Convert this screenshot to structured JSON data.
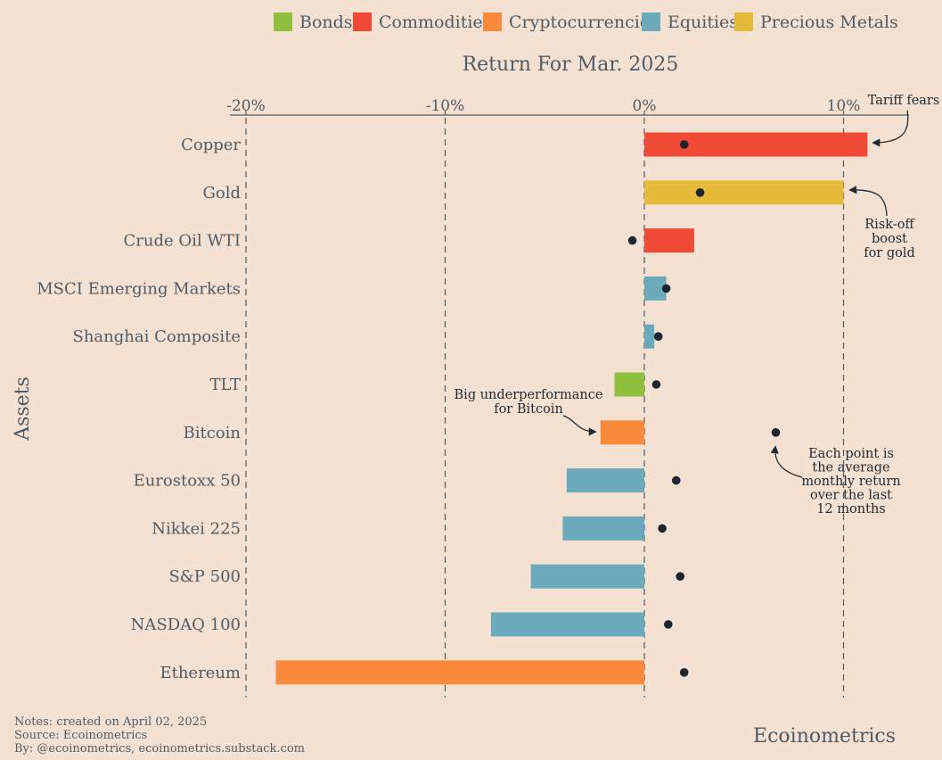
{
  "chart_data": {
    "type": "bar",
    "orientation": "horizontal",
    "title": "Return For Mar. 2025",
    "ylabel": "Assets",
    "xlim": [
      -20,
      12
    ],
    "xticks": [
      -20,
      -10,
      0,
      10
    ],
    "xtick_labels": [
      "-20%",
      "-10%",
      "0%",
      "10%"
    ],
    "grid": "vertical dashed at ticks",
    "legend_position": "top",
    "legend": [
      {
        "name": "Bonds",
        "color": "#8fc13e"
      },
      {
        "name": "Commodities",
        "color": "#f04a35"
      },
      {
        "name": "Cryptocurrencies",
        "color": "#fb8a3c"
      },
      {
        "name": "Equities",
        "color": "#6aaabb"
      },
      {
        "name": "Precious Metals",
        "color": "#e6bb3a"
      }
    ],
    "categories": [
      "Copper",
      "Gold",
      "Crude Oil WTI",
      "MSCI Emerging Markets",
      "Shanghai Composite",
      "TLT",
      "Bitcoin",
      "Eurostoxx 50",
      "Nikkei 225",
      "S&P 500",
      "NASDAQ 100",
      "Ethereum"
    ],
    "groups": [
      "Commodities",
      "Precious Metals",
      "Commodities",
      "Equities",
      "Equities",
      "Bonds",
      "Cryptocurrencies",
      "Equities",
      "Equities",
      "Equities",
      "Equities",
      "Cryptocurrencies"
    ],
    "values": [
      11.2,
      10.0,
      2.5,
      1.1,
      0.5,
      -1.5,
      -2.2,
      -3.9,
      -4.1,
      -5.7,
      -7.7,
      -18.5
    ],
    "points": [
      2.0,
      2.8,
      -0.6,
      1.1,
      0.7,
      0.6,
      6.6,
      1.6,
      0.9,
      1.8,
      1.2,
      2.0
    ],
    "annotations": [
      {
        "id": "tariff",
        "lines": [
          "Tariff fears"
        ]
      },
      {
        "id": "gold",
        "lines": [
          "Risk-off",
          "boost",
          "for gold"
        ]
      },
      {
        "id": "bitcoin",
        "lines": [
          "Big underperformance",
          "for Bitcoin"
        ]
      },
      {
        "id": "point",
        "lines": [
          "Each point is",
          "the average",
          "monthly return",
          "over the last",
          "12 months"
        ]
      }
    ]
  },
  "notes": {
    "line1": "Notes: created on April 02, 2025",
    "line2": "Source: Ecoinometrics",
    "line3": "By: @ecoinometrics, ecoinometrics.substack.com"
  },
  "brand": "Ecoinometrics",
  "colors": {
    "background": "#f4e1d2",
    "axis": "#4f5b66",
    "point": "#1c2630"
  }
}
